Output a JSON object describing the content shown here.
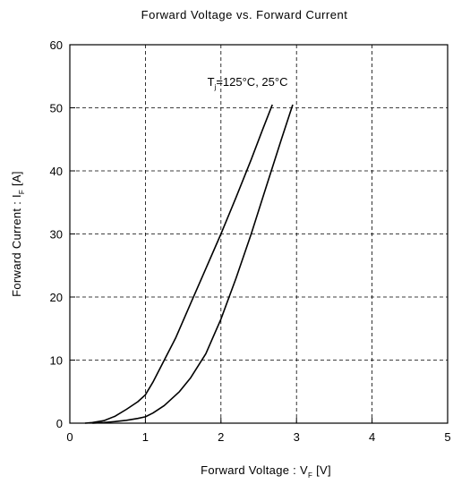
{
  "chart_data": {
    "type": "line",
    "title": "Forward Voltage  vs.  Forward Current",
    "xlabel": {
      "main": "Forward Voltage  :  V",
      "sub": "F",
      "unit": "  [V]"
    },
    "ylabel": {
      "main": "Forward Current  :  I",
      "sub": "F",
      "unit": "  [A]"
    },
    "xlim": [
      0,
      5
    ],
    "ylim": [
      0,
      60
    ],
    "xticks": [
      0,
      1,
      2,
      3,
      4,
      5
    ],
    "yticks": [
      0,
      10,
      20,
      30,
      40,
      50,
      60
    ],
    "grid": true,
    "grid_style": "dashed",
    "annotation": {
      "main": "T",
      "sub": "j",
      "rest": "=125°C, 25°C",
      "x": 1.82,
      "y": 53.5
    },
    "series": [
      {
        "label": "Tj=125°C",
        "color": "#000000",
        "x": [
          0.2,
          0.3,
          0.45,
          0.6,
          0.75,
          0.9,
          1.0,
          1.1,
          1.25,
          1.4,
          1.6,
          1.8,
          2.0,
          2.2,
          2.4,
          2.55,
          2.68
        ],
        "y": [
          0.0,
          0.1,
          0.4,
          1.1,
          2.2,
          3.4,
          4.5,
          6.5,
          10.0,
          13.5,
          19.0,
          24.5,
          30.0,
          35.8,
          41.8,
          46.5,
          50.5
        ]
      },
      {
        "label": "Tj=25°C",
        "color": "#000000",
        "x": [
          0.3,
          0.45,
          0.6,
          0.75,
          0.9,
          1.0,
          1.1,
          1.25,
          1.45,
          1.6,
          1.8,
          2.0,
          2.2,
          2.4,
          2.6,
          2.8,
          2.95
        ],
        "y": [
          0.0,
          0.1,
          0.25,
          0.45,
          0.75,
          1.0,
          1.6,
          2.8,
          5.0,
          7.2,
          11.0,
          16.5,
          23.0,
          30.0,
          37.5,
          45.0,
          50.5
        ]
      }
    ]
  }
}
